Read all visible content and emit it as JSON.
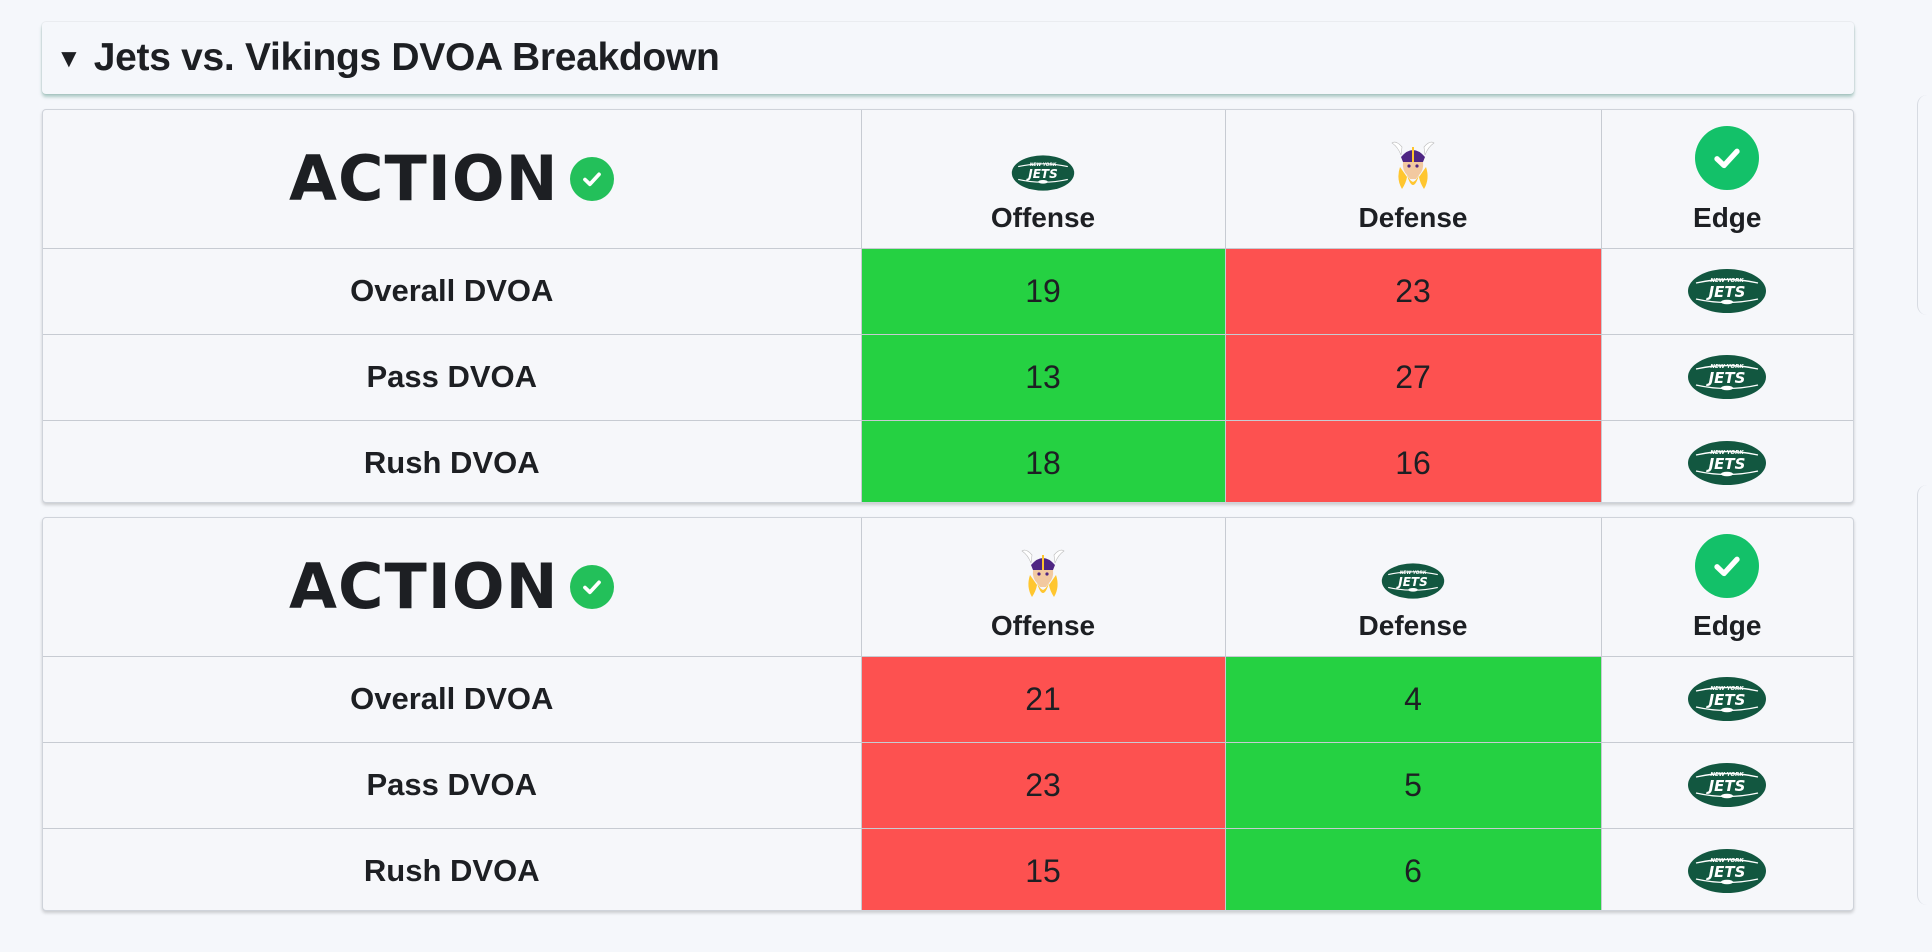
{
  "section": {
    "title": "Jets vs. Vikings DVOA Breakdown",
    "caret": "▼"
  },
  "brand": {
    "word": "ACTION",
    "check_icon": "check-circle-icon"
  },
  "colors": {
    "better": "#25d142",
    "worse": "#fd5150",
    "brand_green": "#23c05a",
    "jets_green": "#125740"
  },
  "tables": [
    {
      "offense_team": "jets-logo-icon",
      "defense_team": "vikings-logo-icon",
      "headers": {
        "offense": "Offense",
        "defense": "Defense",
        "edge": "Edge"
      },
      "rows": [
        {
          "label": "Overall DVOA",
          "offense": "19",
          "defense": "23",
          "edge": "jets-logo-icon"
        },
        {
          "label": "Pass DVOA",
          "offense": "13",
          "defense": "27",
          "edge": "jets-logo-icon"
        },
        {
          "label": "Rush DVOA",
          "offense": "18",
          "defense": "16",
          "edge": "jets-logo-icon"
        }
      ]
    },
    {
      "offense_team": "vikings-logo-icon",
      "defense_team": "jets-logo-icon",
      "headers": {
        "offense": "Offense",
        "defense": "Defense",
        "edge": "Edge"
      },
      "rows": [
        {
          "label": "Overall DVOA",
          "offense": "21",
          "defense": "4",
          "edge": "jets-logo-icon"
        },
        {
          "label": "Pass DVOA",
          "offense": "23",
          "defense": "5",
          "edge": "jets-logo-icon"
        },
        {
          "label": "Rush DVOA",
          "offense": "15",
          "defense": "6",
          "edge": "jets-logo-icon"
        }
      ]
    }
  ]
}
